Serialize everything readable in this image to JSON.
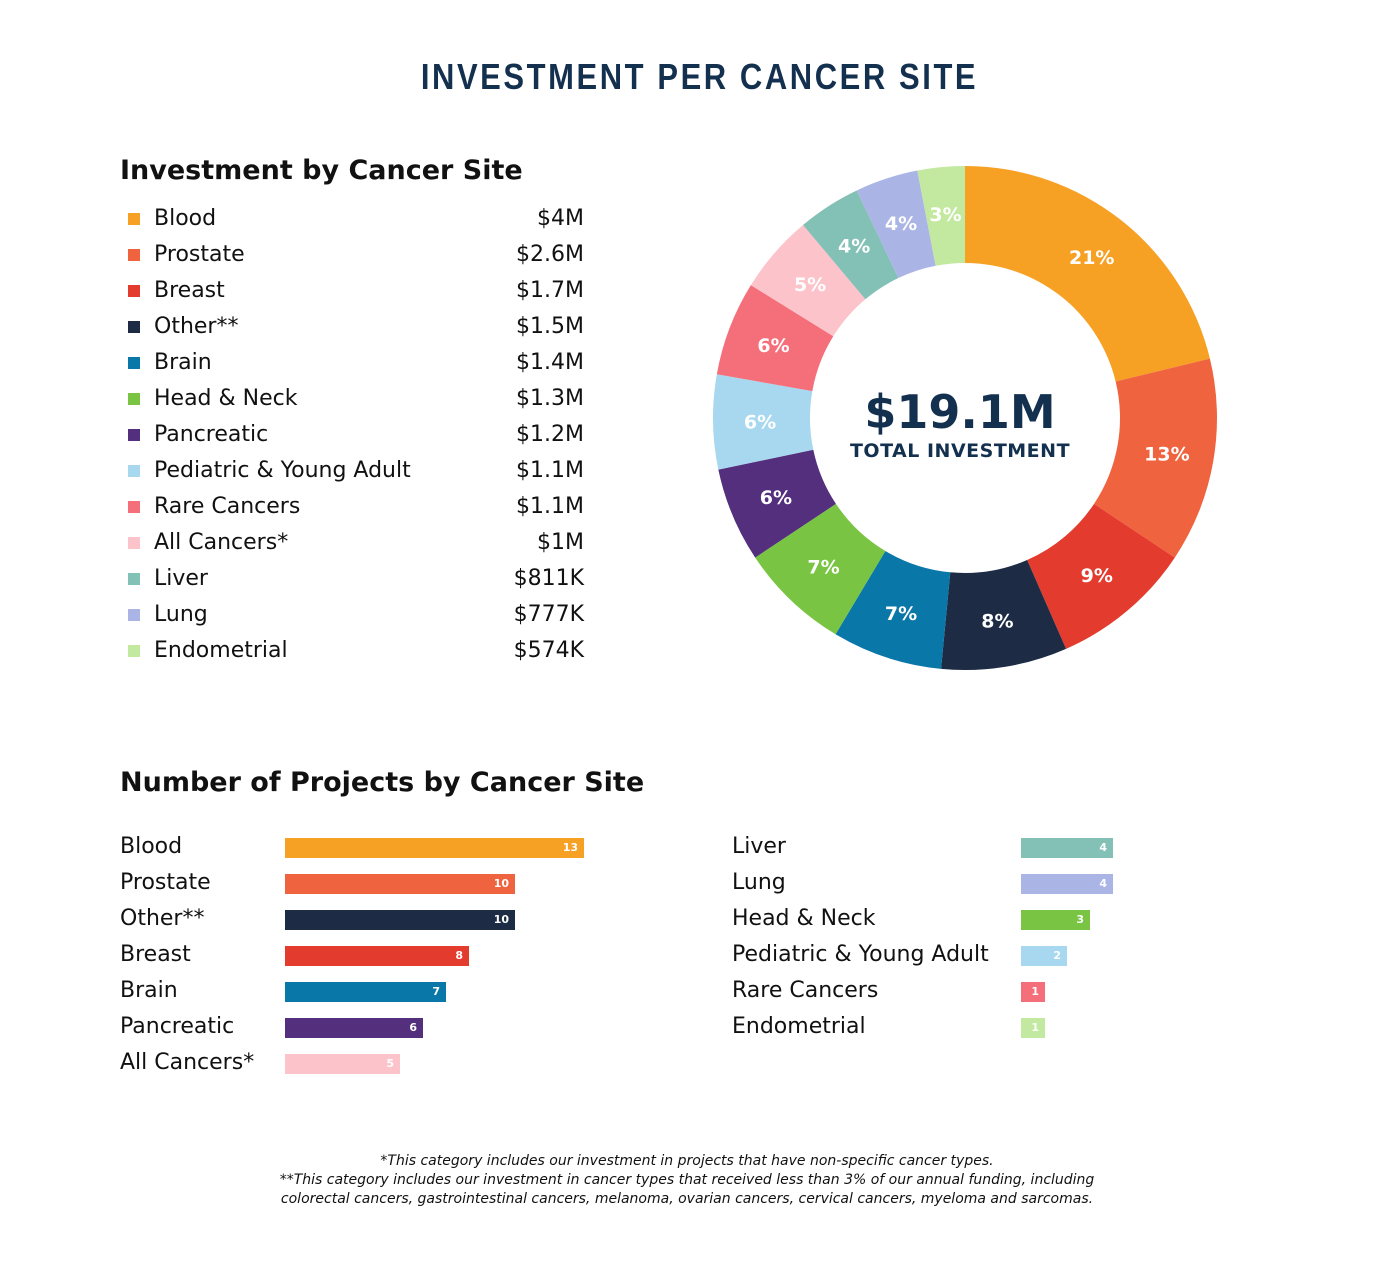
{
  "title": "INVESTMENT PER CANCER SITE",
  "investment_section": {
    "title": "Investment by Cancer Site",
    "items": [
      {
        "name": "Blood",
        "amount": "$4M",
        "color": "#f6a024"
      },
      {
        "name": "Prostate",
        "amount": "$2.6M",
        "color": "#f0633f"
      },
      {
        "name": "Breast",
        "amount": "$1.7M",
        "color": "#e43b2f"
      },
      {
        "name": "Other**",
        "amount": "$1.5M",
        "color": "#1d2b45"
      },
      {
        "name": "Brain",
        "amount": "$1.4M",
        "color": "#0a77a9"
      },
      {
        "name": "Head & Neck",
        "amount": "$1.3M",
        "color": "#79c543"
      },
      {
        "name": "Pancreatic",
        "amount": "$1.2M",
        "color": "#532f7d"
      },
      {
        "name": "Pediatric & Young Adult",
        "amount": "$1.1M",
        "color": "#a7d8ef"
      },
      {
        "name": "Rare Cancers",
        "amount": "$1.1M",
        "color": "#f56f7b"
      },
      {
        "name": "All Cancers*",
        "amount": "$1M",
        "color": "#fcc4ca"
      },
      {
        "name": "Liver",
        "amount": "$811K",
        "color": "#83c0b6"
      },
      {
        "name": "Lung",
        "amount": "$777K",
        "color": "#aab5e6"
      },
      {
        "name": "Endometrial",
        "amount": "$574K",
        "color": "#c3e9a0"
      }
    ]
  },
  "donut": {
    "center_amount": "$19.1M",
    "center_label": "TOTAL INVESTMENT"
  },
  "projects_section": {
    "title": "Number of Projects by Cancer Site"
  },
  "chart_data": [
    {
      "type": "pie",
      "title": "",
      "categories": [
        "Blood",
        "Prostate",
        "Breast",
        "Other**",
        "Brain",
        "Head & Neck",
        "Pancreatic",
        "Pediatric & Young Adult",
        "Rare Cancers",
        "All Cancers*",
        "Liver",
        "Lung",
        "Endometrial"
      ],
      "values": [
        21,
        13,
        9,
        8,
        7,
        7,
        6,
        6,
        6,
        5,
        4,
        4,
        3
      ],
      "labels": [
        "21%",
        "13%",
        "9%",
        "8%",
        "7%",
        "7%",
        "6%",
        "6%",
        "6%",
        "5%",
        "4%",
        "4%",
        "3%"
      ],
      "colors": [
        "#f6a024",
        "#f0633f",
        "#e43b2f",
        "#1d2b45",
        "#0a77a9",
        "#79c543",
        "#532f7d",
        "#a7d8ef",
        "#f56f7b",
        "#fcc4ca",
        "#83c0b6",
        "#aab5e6",
        "#c3e9a0"
      ],
      "legend": "left"
    },
    {
      "type": "bar",
      "orientation": "horizontal",
      "title": "Number of Projects by Cancer Site",
      "xlim": [
        0,
        13
      ],
      "columns": [
        [
          {
            "name": "Blood",
            "value": 13,
            "color": "#f6a024"
          },
          {
            "name": "Prostate",
            "value": 10,
            "color": "#f0633f"
          },
          {
            "name": "Other**",
            "value": 10,
            "color": "#1d2b45"
          },
          {
            "name": "Breast",
            "value": 8,
            "color": "#e43b2f"
          },
          {
            "name": "Brain",
            "value": 7,
            "color": "#0a77a9"
          },
          {
            "name": "Pancreatic",
            "value": 6,
            "color": "#532f7d"
          },
          {
            "name": "All Cancers*",
            "value": 5,
            "color": "#fcc4ca"
          }
        ],
        [
          {
            "name": "Liver",
            "value": 4,
            "color": "#83c0b6"
          },
          {
            "name": "Lung",
            "value": 4,
            "color": "#aab5e6"
          },
          {
            "name": "Head & Neck",
            "value": 3,
            "color": "#79c543"
          },
          {
            "name": "Pediatric & Young Adult",
            "value": 2,
            "color": "#a7d8ef"
          },
          {
            "name": "Rare Cancers",
            "value": 1,
            "color": "#f56f7b"
          },
          {
            "name": "Endometrial",
            "value": 1,
            "color": "#c3e9a0"
          }
        ]
      ]
    }
  ],
  "footnotes": [
    "*This category includes our investment in projects that have non-specific cancer types.",
    "**This category includes our investment in cancer types that received less than 3% of our annual funding, including",
    "colorectal cancers, gastrointestinal cancers, melanoma, ovarian cancers, cervical cancers, myeloma and sarcomas."
  ]
}
